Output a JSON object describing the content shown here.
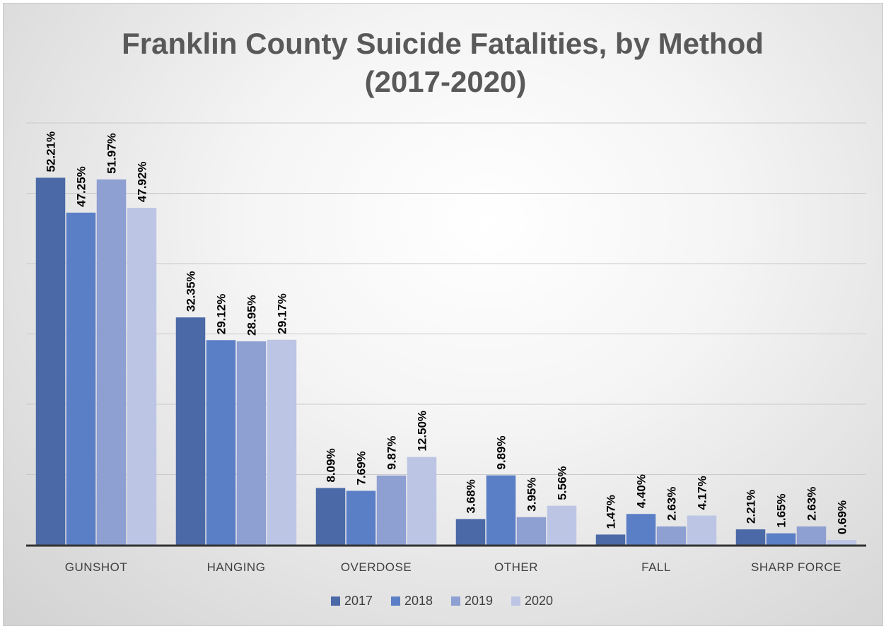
{
  "chart_data": {
    "type": "bar",
    "title": "Franklin County Suicide Fatalities, by Method",
    "subtitle": "(2017-2020)",
    "categories": [
      "GUNSHOT",
      "HANGING",
      "OVERDOSE",
      "OTHER",
      "FALL",
      "SHARP FORCE"
    ],
    "series": [
      {
        "name": "2017",
        "color": "#4a69a6",
        "values": [
          52.21,
          32.35,
          8.09,
          3.68,
          1.47,
          2.21
        ],
        "labels": [
          "52.21%",
          "32.35%",
          "8.09%",
          "3.68%",
          "1.47%",
          "2.21%"
        ]
      },
      {
        "name": "2018",
        "color": "#5b7fc6",
        "values": [
          47.25,
          29.12,
          7.69,
          9.89,
          4.4,
          1.65
        ],
        "labels": [
          "47.25%",
          "29.12%",
          "7.69%",
          "9.89%",
          "4.40%",
          "1.65%"
        ]
      },
      {
        "name": "2019",
        "color": "#8e9fd2",
        "values": [
          51.97,
          28.95,
          9.87,
          3.95,
          2.63,
          2.63
        ],
        "labels": [
          "51.97%",
          "28.95%",
          "9.87%",
          "3.95%",
          "2.63%",
          "2.63%"
        ]
      },
      {
        "name": "2020",
        "color": "#bcc5e4",
        "values": [
          47.92,
          29.17,
          12.5,
          5.56,
          4.17,
          0.69
        ],
        "labels": [
          "47.92%",
          "29.17%",
          "12.50%",
          "5.56%",
          "4.17%",
          "0.69%"
        ]
      }
    ],
    "ylim": [
      0,
      60
    ],
    "yticks": [
      0,
      10,
      20,
      30,
      40,
      50,
      60
    ],
    "grid": true,
    "legend_position": "bottom"
  }
}
